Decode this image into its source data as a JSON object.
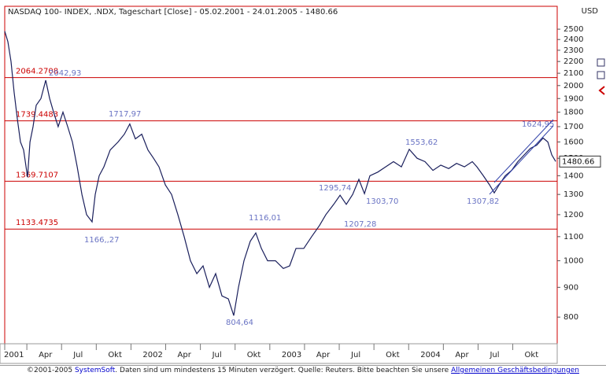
{
  "chart_data": {
    "type": "line",
    "title": "NASDAQ 100- INDEX, .NDX, Tageschart [Close] - 05.02.2001 - 24.01.2005 - 1480.66",
    "currency": "USD",
    "yscale": "log",
    "ylim": [
      720,
      2737
    ],
    "yticks": [
      800,
      900,
      1000,
      1100,
      1200,
      1300,
      1400,
      1500,
      1600,
      1700,
      1800,
      1900,
      2000,
      2100,
      2200,
      2300,
      2400,
      2500
    ],
    "xlim": [
      1.088,
      48.84
    ],
    "xticks": [
      {
        "value": 0,
        "label": "2001"
      },
      {
        "value": 3,
        "label": "Apr"
      },
      {
        "value": 6,
        "label": "Jul"
      },
      {
        "value": 9,
        "label": "Okt"
      },
      {
        "value": 12,
        "label": "2002"
      },
      {
        "value": 15,
        "label": "Apr"
      },
      {
        "value": 18,
        "label": "Jul"
      },
      {
        "value": 21,
        "label": "Okt"
      },
      {
        "value": 24,
        "label": "2003"
      },
      {
        "value": 27,
        "label": "Apr"
      },
      {
        "value": 30,
        "label": "Jul"
      },
      {
        "value": 33,
        "label": "Okt"
      },
      {
        "value": 36,
        "label": "2004"
      },
      {
        "value": 39,
        "label": "Apr"
      },
      {
        "value": 42,
        "label": "Jul"
      },
      {
        "value": 45,
        "label": "Okt"
      }
    ],
    "series": [
      {
        "name": "NASDAQ 100",
        "color": "#1a1f5c",
        "x": [
          1.09,
          1.36,
          1.63,
          1.9,
          2.18,
          2.45,
          2.72,
          3.06,
          3.27,
          3.54,
          3.81,
          4.22,
          4.63,
          4.97,
          5.31,
          5.71,
          6.12,
          6.53,
          6.94,
          7.35,
          7.76,
          8.16,
          8.64,
          8.91,
          9.25,
          9.66,
          10.2,
          10.88,
          11.43,
          11.9,
          12.38,
          12.93,
          13.47,
          13.95,
          14.42,
          14.97,
          15.51,
          16.05,
          16.6,
          17.14,
          17.69,
          18.23,
          18.78,
          19.32,
          19.86,
          20.41,
          20.88,
          21.29,
          21.77,
          22.31,
          22.79,
          23.27,
          23.81,
          24.49,
          25.17,
          25.71,
          26.26,
          26.94,
          27.62,
          28.3,
          28.84,
          29.52,
          30.07,
          30.61,
          31.16,
          31.7,
          32.18,
          32.65,
          33.33,
          34.01,
          34.69,
          35.37,
          36.05,
          36.73,
          37.41,
          38.1,
          38.78,
          39.46,
          40.14,
          40.82,
          41.5,
          41.9,
          42.45,
          43.0,
          43.4,
          43.81,
          44.35,
          44.9,
          45.44,
          45.99,
          46.53,
          47.07,
          47.62,
          48.03,
          48.37,
          48.71
        ],
        "values": [
          2480,
          2380,
          2200,
          1950,
          1750,
          1600,
          1550,
          1392,
          1600,
          1700,
          1850,
          1900,
          2043,
          1900,
          1800,
          1700,
          1800,
          1700,
          1600,
          1450,
          1300,
          1200,
          1166,
          1300,
          1400,
          1450,
          1550,
          1600,
          1650,
          1718,
          1620,
          1650,
          1550,
          1500,
          1450,
          1350,
          1300,
          1200,
          1100,
          1000,
          950,
          980,
          900,
          950,
          870,
          860,
          805,
          900,
          1000,
          1080,
          1116,
          1050,
          1000,
          1000,
          970,
          980,
          1050,
          1050,
          1100,
          1150,
          1200,
          1250,
          1296,
          1250,
          1300,
          1380,
          1304,
          1400,
          1420,
          1450,
          1480,
          1450,
          1554,
          1500,
          1480,
          1430,
          1460,
          1440,
          1470,
          1450,
          1480,
          1450,
          1400,
          1350,
          1308,
          1350,
          1400,
          1430,
          1480,
          1520,
          1560,
          1580,
          1625,
          1600,
          1520,
          1481
        ]
      }
    ],
    "levels": [
      2064.2708,
      1739.4483,
      1369.7107,
      1133.4735
    ],
    "level_color": "#cc0000",
    "annotations": [
      "2042,93",
      "1717,97",
      "1166,,27",
      "804,64",
      "1116,01",
      "1295,74",
      "1207,28",
      "1303,70",
      "1553,62",
      "1307,82",
      "1624,95"
    ],
    "last_value": 1480.66
  },
  "footer": [
    "©2001-2005 ",
    "SystemSoft",
    ". Daten sind um mindestens 15 Minuten verzögert. Quelle: Reuters. Bitte beachten Sie unsere ",
    "Allgemeinen Geschäftsbedingungen"
  ]
}
